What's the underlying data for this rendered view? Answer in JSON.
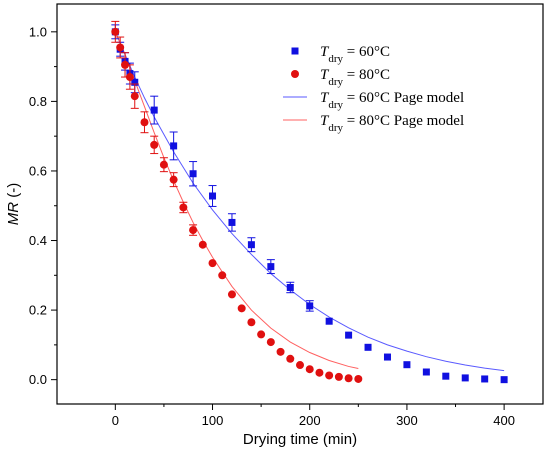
{
  "chart_data": {
    "type": "scatter",
    "xlabel": "Drying time (min)",
    "ylabel_italic": "MR",
    "ylabel_rest": " (-)",
    "xlim": [
      -60,
      440
    ],
    "ylim": [
      -0.07,
      1.08
    ],
    "xticks": [
      0,
      100,
      200,
      300,
      400
    ],
    "xminor": [
      50,
      150,
      250,
      350
    ],
    "yticks": [
      0.0,
      0.2,
      0.4,
      0.6,
      0.8,
      1.0
    ],
    "yminor": [
      0.1,
      0.3,
      0.5,
      0.7,
      0.9
    ],
    "colors": {
      "s60": "#1010e0",
      "s80": "#e01010",
      "m60": "#5a5aff",
      "m80": "#ff6060"
    },
    "series": [
      {
        "name": "T_dry = 60°C",
        "legend_main": "T",
        "legend_sub": "dry",
        "legend_rest": " = 60°C",
        "marker": "square",
        "x": [
          0,
          5,
          10,
          15,
          20,
          40,
          60,
          80,
          100,
          120,
          140,
          160,
          180,
          200,
          220,
          240,
          260,
          280,
          300,
          320,
          340,
          360,
          380,
          400
        ],
        "y": [
          1.0,
          0.95,
          0.915,
          0.88,
          0.855,
          0.775,
          0.672,
          0.592,
          0.528,
          0.452,
          0.388,
          0.325,
          0.265,
          0.212,
          0.168,
          0.128,
          0.093,
          0.065,
          0.043,
          0.022,
          0.01,
          0.005,
          0.002,
          0.0
        ],
        "err": [
          0.02,
          0.02,
          0.025,
          0.03,
          0.03,
          0.04,
          0.04,
          0.035,
          0.03,
          0.025,
          0.02,
          0.02,
          0.015,
          0.015,
          0.0,
          0.0,
          0.0,
          0.0,
          0.0,
          0.0,
          0.0,
          0.0,
          0.0,
          0.0
        ]
      },
      {
        "name": "T_dry = 80°C",
        "legend_main": "T",
        "legend_sub": "dry",
        "legend_rest": " = 80°C",
        "marker": "circle",
        "x": [
          0,
          5,
          10,
          15,
          20,
          30,
          40,
          50,
          60,
          70,
          80,
          90,
          100,
          110,
          120,
          130,
          140,
          150,
          160,
          170,
          180,
          190,
          200,
          210,
          220,
          230,
          240,
          250
        ],
        "y": [
          1.0,
          0.955,
          0.905,
          0.87,
          0.815,
          0.74,
          0.675,
          0.618,
          0.575,
          0.495,
          0.43,
          0.388,
          0.335,
          0.3,
          0.245,
          0.205,
          0.165,
          0.13,
          0.108,
          0.08,
          0.06,
          0.042,
          0.03,
          0.02,
          0.012,
          0.008,
          0.004,
          0.002
        ],
        "err": [
          0.03,
          0.03,
          0.035,
          0.035,
          0.035,
          0.03,
          0.025,
          0.02,
          0.02,
          0.015,
          0.015,
          0.0,
          0.0,
          0.0,
          0.0,
          0.0,
          0.0,
          0.0,
          0.0,
          0.0,
          0.0,
          0.0,
          0.0,
          0.0,
          0.0,
          0.0,
          0.0,
          0.0
        ]
      },
      {
        "name": "T_dry = 60°C Page model",
        "legend_main": "T",
        "legend_sub": "dry",
        "legend_rest": " = 60°C Page model",
        "line": true,
        "x": [
          0,
          10,
          20,
          30,
          40,
          60,
          80,
          100,
          120,
          140,
          160,
          180,
          200,
          220,
          240,
          260,
          280,
          300,
          320,
          340,
          360,
          380,
          400
        ],
        "y": [
          1.0,
          0.935,
          0.87,
          0.81,
          0.755,
          0.655,
          0.565,
          0.488,
          0.42,
          0.36,
          0.305,
          0.258,
          0.216,
          0.18,
          0.149,
          0.122,
          0.1,
          0.082,
          0.066,
          0.053,
          0.042,
          0.033,
          0.026
        ]
      },
      {
        "name": "T_dry = 80°C Page model",
        "legend_main": "T",
        "legend_sub": "dry",
        "legend_rest": " = 80°C Page model",
        "line": true,
        "x": [
          0,
          10,
          20,
          30,
          40,
          50,
          60,
          70,
          80,
          90,
          100,
          120,
          140,
          160,
          180,
          200,
          220,
          240,
          250
        ],
        "y": [
          1.0,
          0.935,
          0.86,
          0.785,
          0.71,
          0.638,
          0.572,
          0.51,
          0.452,
          0.4,
          0.352,
          0.268,
          0.2,
          0.148,
          0.108,
          0.078,
          0.055,
          0.038,
          0.032
        ]
      }
    ]
  }
}
